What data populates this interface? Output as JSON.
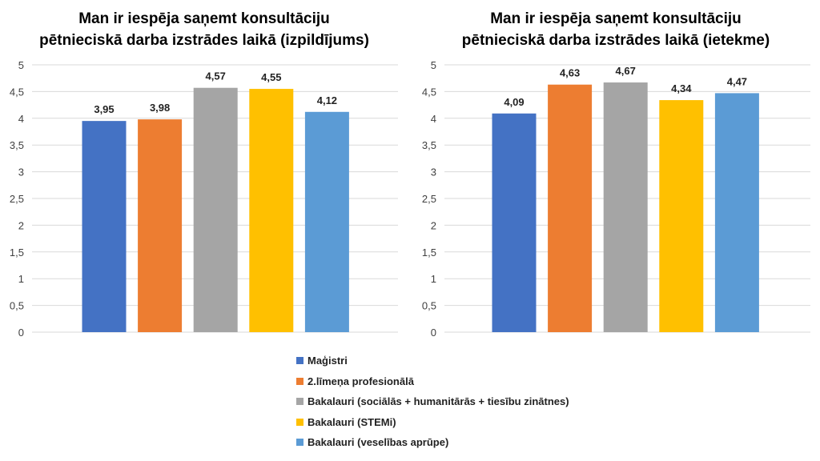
{
  "chart_data": [
    {
      "type": "bar",
      "title_lines": [
        "Man ir iespēja saņemt konsultāciju",
        "pētnieciskā darba izstrādes laikā (izpildījums)"
      ],
      "categories": [
        "Maģistri",
        "2.līmeņa profesionālā",
        "Bakalauri (sociālās + humanitārās + tiesību zinātnes)",
        "Bakalauri (STEMi)",
        "Bakalauri (veselības aprūpe)"
      ],
      "values": [
        3.95,
        3.98,
        4.57,
        4.55,
        4.12
      ],
      "value_labels": [
        "3,95",
        "3,98",
        "4,57",
        "4,55",
        "4,12"
      ],
      "ylim": [
        0,
        5
      ],
      "yticks": [
        "0",
        "0,5",
        "1",
        "1,5",
        "2",
        "2,5",
        "3",
        "3,5",
        "4",
        "4,5",
        "5"
      ],
      "grid": true
    },
    {
      "type": "bar",
      "title_lines": [
        "Man ir iespēja saņemt konsultāciju",
        "pētnieciskā darba izstrādes laikā (ietekme)"
      ],
      "categories": [
        "Maģistri",
        "2.līmeņa profesionālā",
        "Bakalauri (sociālās + humanitārās + tiesību zinātnes)",
        "Bakalauri (STEMi)",
        "Bakalauri (veselības aprūpe)"
      ],
      "values": [
        4.09,
        4.63,
        4.67,
        4.34,
        4.47
      ],
      "value_labels": [
        "4,09",
        "4,63",
        "4,67",
        "4,34",
        "4,47"
      ],
      "ylim": [
        0,
        5
      ],
      "yticks": [
        "0",
        "0,5",
        "1",
        "1,5",
        "2",
        "2,5",
        "3",
        "3,5",
        "4",
        "4,5",
        "5"
      ],
      "grid": true
    }
  ],
  "legend": {
    "placement": "bottom-center",
    "items": [
      {
        "label": "Maģistri",
        "color": "#4472c4"
      },
      {
        "label": "2.līmeņa profesionālā",
        "color": "#ed7d31"
      },
      {
        "label": "Bakalauri (sociālās + humanitārās + tiesību zinātnes)",
        "color": "#a5a5a5"
      },
      {
        "label": "Bakalauri (STEMi)",
        "color": "#ffc000"
      },
      {
        "label": "Bakalauri (veselības aprūpe)",
        "color": "#5b9bd5"
      }
    ]
  }
}
